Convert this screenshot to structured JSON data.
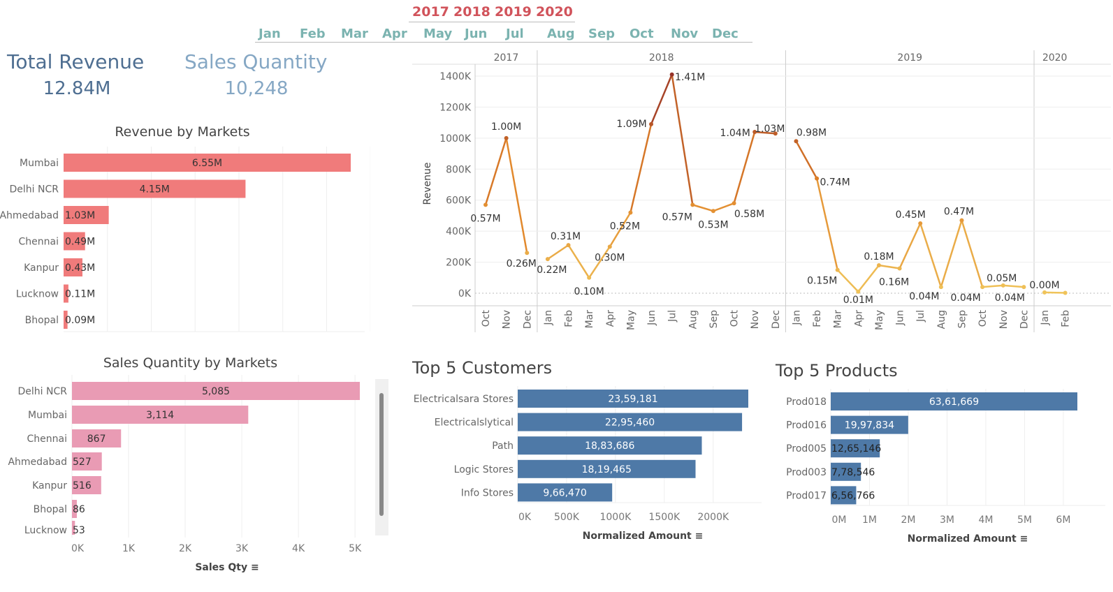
{
  "filters": {
    "years": [
      "2017",
      "2018",
      "2019",
      "2020"
    ],
    "months": [
      "Jan",
      "Feb",
      "Mar",
      "Apr",
      "May",
      "Jun",
      "Jul",
      "Aug",
      "Sep",
      "Oct",
      "Nov",
      "Dec"
    ]
  },
  "kpis": {
    "revenue_title": "Total Revenue",
    "revenue_value": "12.84M",
    "qty_title": "Sales Quantity",
    "qty_value": "10,248"
  },
  "colors": {
    "revenue_title": "#4e6e91",
    "qty_title": "#85a7c4",
    "revenue_bar": "#f07b7b",
    "qty_bar": "#e99bb4",
    "blue_bar": "#4e79a7",
    "year_filter": "#d1535b",
    "month_filter": "#7bb3b0"
  },
  "chart_data": [
    {
      "id": "revenue_by_markets",
      "type": "bar",
      "orientation": "horizontal",
      "title": "Revenue by Markets",
      "categories": [
        "Mumbai",
        "Delhi NCR",
        "Ahmedabad",
        "Chennai",
        "Kanpur",
        "Lucknow",
        "Bhopal"
      ],
      "values": [
        6.55,
        4.15,
        1.03,
        0.49,
        0.43,
        0.11,
        0.09
      ],
      "labels": [
        "6.55M",
        "4.15M",
        "1.03M",
        "0.49M",
        "0.43M",
        "0.11M",
        "0.09M"
      ],
      "xlim": [
        0,
        7
      ]
    },
    {
      "id": "sales_qty_by_markets",
      "type": "bar",
      "orientation": "horizontal",
      "title": "Sales Quantity by Markets",
      "xlabel": "Sales Qty",
      "categories": [
        "Delhi NCR",
        "Mumbai",
        "Chennai",
        "Ahmedabad",
        "Kanpur",
        "Bhopal",
        "Lucknow"
      ],
      "values": [
        5085,
        3114,
        867,
        527,
        516,
        86,
        53
      ],
      "labels": [
        "5,085",
        "3,114",
        "867",
        "527",
        "516",
        "86",
        "53"
      ],
      "xticks": [
        0,
        1000,
        2000,
        3000,
        4000,
        5000
      ],
      "xtick_labels": [
        "0K",
        "1K",
        "2K",
        "3K",
        "4K",
        "5K"
      ]
    },
    {
      "id": "revenue_trend",
      "type": "line",
      "ylabel": "Revenue",
      "ylim": [
        0,
        1400000
      ],
      "yticks": [
        0,
        200000,
        400000,
        600000,
        800000,
        1000000,
        1200000,
        1400000
      ],
      "ytick_labels": [
        "0K",
        "200K",
        "400K",
        "600K",
        "800K",
        "1000K",
        "1200K",
        "1400K"
      ],
      "years": [
        {
          "label": "2017",
          "months": 3
        },
        {
          "label": "2018",
          "months": 12
        },
        {
          "label": "2019",
          "months": 12
        },
        {
          "label": "2020",
          "months": 2
        }
      ],
      "x": [
        "Oct",
        "Nov",
        "Dec",
        "Jan",
        "Feb",
        "Mar",
        "Apr",
        "May",
        "Jun",
        "Jul",
        "Aug",
        "Sep",
        "Oct",
        "Nov",
        "Dec",
        "Jan",
        "Feb",
        "Mar",
        "Apr",
        "May",
        "Jun",
        "Jul",
        "Aug",
        "Sep",
        "Oct",
        "Nov",
        "Dec",
        "Jan",
        "Feb"
      ],
      "values": [
        570000,
        1000000,
        260000,
        220000,
        310000,
        100000,
        300000,
        520000,
        1090000,
        1410000,
        570000,
        530000,
        580000,
        1040000,
        1030000,
        980000,
        740000,
        150000,
        10000,
        180000,
        160000,
        450000,
        40000,
        470000,
        40000,
        50000,
        40000,
        5000,
        2000
      ],
      "labels": [
        "0.57M",
        "1.00M",
        "0.26M",
        "0.22M",
        "0.31M",
        "0.10M",
        "0.30M",
        "0.52M",
        "1.09M",
        "1.41M",
        "0.57M",
        "0.53M",
        "0.58M",
        "1.04M",
        "1.03M",
        "0.98M",
        "0.74M",
        "0.15M",
        "0.01M",
        "0.18M",
        "0.16M",
        "0.45M",
        "0.04M",
        "0.47M",
        "0.04M",
        "0.05M",
        "0.04M",
        "0.00M",
        ""
      ]
    },
    {
      "id": "top5_customers",
      "type": "bar",
      "orientation": "horizontal",
      "title": "Top 5 Customers",
      "xlabel": "Normalized Amount",
      "categories": [
        "Electricalsara Stores",
        "Electricalslytical",
        "Path",
        "Logic Stores",
        "Info Stores"
      ],
      "values": [
        2359181,
        2295460,
        1883686,
        1819465,
        966470
      ],
      "labels": [
        "23,59,181",
        "22,95,460",
        "18,83,686",
        "18,19,465",
        "9,66,470"
      ],
      "xticks": [
        0,
        500000,
        1000000,
        1500000,
        2000000
      ],
      "xtick_labels": [
        "0K",
        "500K",
        "1000K",
        "1500K",
        "2000K"
      ]
    },
    {
      "id": "top5_products",
      "type": "bar",
      "orientation": "horizontal",
      "title": "Top 5 Products",
      "xlabel": "Normalized Amount",
      "categories": [
        "Prod018",
        "Prod016",
        "Prod005",
        "Prod003",
        "Prod017"
      ],
      "values": [
        6361669,
        1997834,
        1265146,
        778546,
        656766
      ],
      "labels": [
        "63,61,669",
        "19,97,834",
        "12,65,146",
        "7,78,546",
        "6,56,766"
      ],
      "xticks": [
        0,
        1000000,
        2000000,
        3000000,
        4000000,
        5000000,
        6000000
      ],
      "xtick_labels": [
        "0M",
        "1M",
        "2M",
        "3M",
        "4M",
        "5M",
        "6M"
      ]
    }
  ]
}
